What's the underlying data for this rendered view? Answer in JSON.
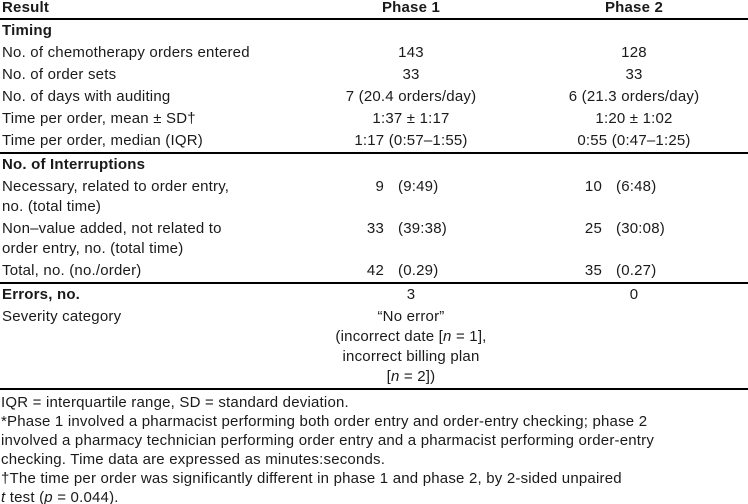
{
  "colors": {
    "text": "#1a1a1a",
    "rule": "#000000",
    "background": "#ffffff"
  },
  "table": {
    "headers": {
      "result": "Result",
      "phase1": "Phase 1",
      "phase2": "Phase 2"
    },
    "rows": [
      {
        "label": "Timing",
        "bold": true,
        "p1": "",
        "p2": ""
      },
      {
        "label": "No. of chemotherapy orders entered",
        "p1": "143",
        "p2": "128"
      },
      {
        "label": "No. of order sets",
        "p1": "33",
        "p2": "33"
      },
      {
        "label": "No. of days with auditing",
        "p1": "7 (20.4 orders/day)",
        "p2": "6 (21.3 orders/day)"
      },
      {
        "label": "Time per order, mean ± SD†",
        "p1": "1:37 ± 1:17",
        "p2": "1:20 ± 1:02"
      },
      {
        "label": "Time per order, median (IQR)",
        "p1": "1:17 (0:57–1:55)",
        "p2": "0:55 (0:47–1:25)"
      },
      {
        "label": "No. of Interruptions",
        "bold": true,
        "rule": true,
        "p1": "",
        "p2": ""
      },
      {
        "label": "Necessary, related to order entry,\nno. (total time)",
        "p1": {
          "n": "9",
          "d": "(9:49)"
        },
        "p2": {
          "n": "10",
          "d": "(6:48)"
        }
      },
      {
        "label": "Non–value added, not related to\norder entry, no. (total time)",
        "p1": {
          "n": "33",
          "d": "(39:38)"
        },
        "p2": {
          "n": "25",
          "d": "(30:08)"
        }
      },
      {
        "label": "Total, no. (no./order)",
        "p1": {
          "n": "42",
          "d": "(0.29)"
        },
        "p2": {
          "n": "35",
          "d": "(0.27)"
        }
      },
      {
        "label": "Errors, no.",
        "bold": true,
        "rule": true,
        "p1": "3",
        "p2": "0"
      },
      {
        "label": "Severity category",
        "p1": [
          {
            "t": "“No error”\n(incorrect date ["
          },
          {
            "t": "n",
            "i": true
          },
          {
            "t": " = 1],\nincorrect billing plan\n["
          },
          {
            "t": "n",
            "i": true
          },
          {
            "t": " = 2])"
          }
        ],
        "p2": ""
      }
    ]
  },
  "footnotes": [
    [
      {
        "t": "IQR = interquartile range, SD = standard deviation."
      }
    ],
    [
      {
        "t": "*Phase 1 involved a pharmacist performing both order entry and order-entry checking; phase 2\ninvolved a pharmacy technician performing order entry and a pharmacist performing order-entry\nchecking. Time data are expressed as minutes:seconds."
      }
    ],
    [
      {
        "t": "†The time per order was significantly different in phase 1 and phase 2, by 2-sided unpaired\n"
      },
      {
        "t": "t",
        "i": true
      },
      {
        "t": " test ("
      },
      {
        "t": "p",
        "i": true
      },
      {
        "t": " = 0.044)."
      }
    ]
  ]
}
